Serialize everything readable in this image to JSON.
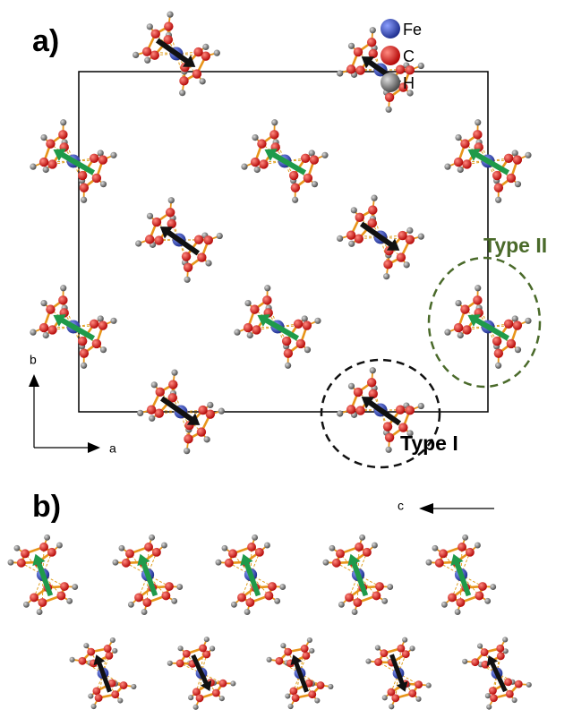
{
  "panel_a": {
    "label": "a)",
    "legend": [
      "Fe",
      "C",
      "H"
    ],
    "axis_labels": [
      "b",
      "a"
    ],
    "annotations": [
      "Type II",
      "Type I"
    ]
  },
  "panel_b": {
    "label": "b)",
    "axis_label": "c"
  }
}
